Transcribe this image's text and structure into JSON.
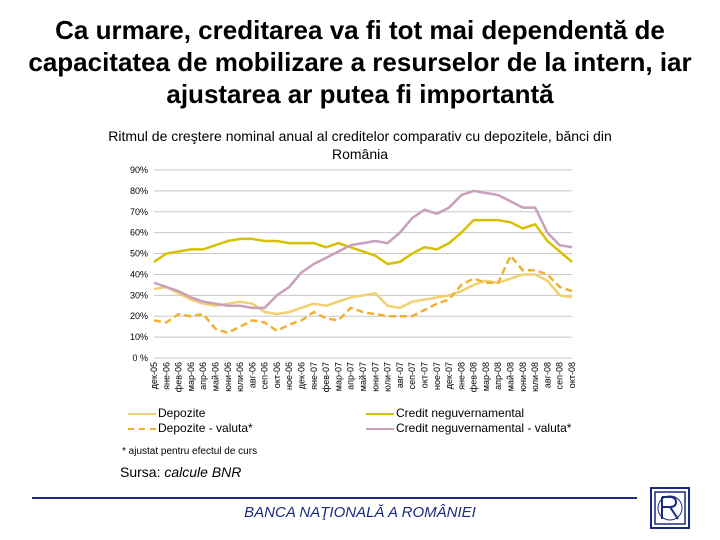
{
  "title": "Ca urmare, creditarea va fi tot mai dependentă de capacitatea de mobilizare a resurselor de la intern, iar ajustarea ar putea fi importantă",
  "footnote": "* ajustat pentru efectul de curs",
  "source_prefix": "Sursa: ",
  "source_name": "calcule BNR",
  "bank_name": "BANCA NAŢIONALĂ A ROMÂNIEI",
  "chart_data": {
    "type": "line",
    "title": "Ritmul de creştere nominal anual al creditelor comparativ cu  depozitele, bănci din România",
    "ylim": [
      0,
      90
    ],
    "y_ticks": [
      "0 %",
      "10%",
      "20%",
      "30%",
      "40%",
      "50%",
      "60%",
      "70%",
      "80%",
      "90%"
    ],
    "y_tick_values": [
      0,
      10,
      20,
      30,
      40,
      50,
      60,
      70,
      80,
      90
    ],
    "grid": true,
    "legend_position": "bottom",
    "categories": [
      "дек-05",
      "яне-06",
      "фев-06",
      "мар-06",
      "апр-06",
      "май-06",
      "юни-06",
      "юли-06",
      "авг-06",
      "сеп-06",
      "окт-06",
      "ное-06",
      "дек-06",
      "яне-07",
      "фев-07",
      "мар-07",
      "апр-07",
      "май-07",
      "юни-07",
      "юли-07",
      "авг-07",
      "сеп-07",
      "окт-07",
      "ное-07",
      "дек-07",
      "яне-08",
      "фев-08",
      "мар-08",
      "апр-08",
      "май-08",
      "юни-08",
      "юли-08",
      "авг-08",
      "сеп-08",
      "окт-08"
    ],
    "x_tick_labels": [
      "дек-05",
      "яне-06",
      "фев-06",
      "мар-06",
      "апр-06",
      "май-06",
      "юни-06",
      "юли-06",
      "авг-06",
      "сеп-06",
      "окт-06",
      "ное-06",
      "дек-06",
      "яне-07",
      "фев-07",
      "мар-07",
      "апр-07",
      "май-07",
      "юни-07",
      "юли-07",
      "авг-07",
      "сеп-07",
      "окт-07",
      "ное-07",
      "дек-07",
      "яне-08",
      "фев-08",
      "мар-08",
      "апр-08",
      "май-08",
      "юни-08",
      "юли-08",
      "авг-08",
      "сеп-08",
      "окт-08"
    ],
    "series": [
      {
        "name": "Depozite",
        "color": "#f0d070",
        "dash": false,
        "values": [
          33,
          34,
          31,
          28,
          26,
          25,
          26,
          27,
          26,
          22,
          21,
          22,
          24,
          26,
          25,
          27,
          29,
          30,
          31,
          25,
          24,
          27,
          28,
          29,
          30,
          32,
          35,
          37,
          36,
          38,
          40,
          40,
          37,
          30,
          29
        ]
      },
      {
        "name": "Credit neguvernamental",
        "color": "#d8c000",
        "dash": false,
        "values": [
          46,
          50,
          51,
          52,
          52,
          54,
          56,
          57,
          57,
          56,
          56,
          55,
          55,
          55,
          53,
          55,
          53,
          51,
          49,
          45,
          46,
          50,
          53,
          52,
          55,
          60,
          66,
          66,
          66,
          65,
          62,
          64,
          56,
          51,
          46
        ]
      },
      {
        "name": "Depozite - valuta*",
        "color": "#f0b030",
        "dash": true,
        "values": [
          18,
          17,
          21,
          20,
          21,
          14,
          12,
          15,
          18,
          17,
          13,
          16,
          18,
          22,
          19,
          18,
          24,
          22,
          21,
          20,
          20,
          20,
          23,
          26,
          28,
          35,
          38,
          36,
          36,
          49,
          42,
          42,
          40,
          34,
          32
        ]
      },
      {
        "name": "Credit neguvernamental - valuta*",
        "color": "#c8a0bc",
        "dash": false,
        "values": [
          36,
          34,
          32,
          29,
          27,
          26,
          25,
          25,
          24,
          24,
          30,
          34,
          41,
          45,
          48,
          51,
          54,
          55,
          56,
          55,
          60,
          67,
          71,
          69,
          72,
          78,
          80,
          79,
          78,
          75,
          72,
          72,
          60,
          54,
          53
        ]
      }
    ]
  }
}
